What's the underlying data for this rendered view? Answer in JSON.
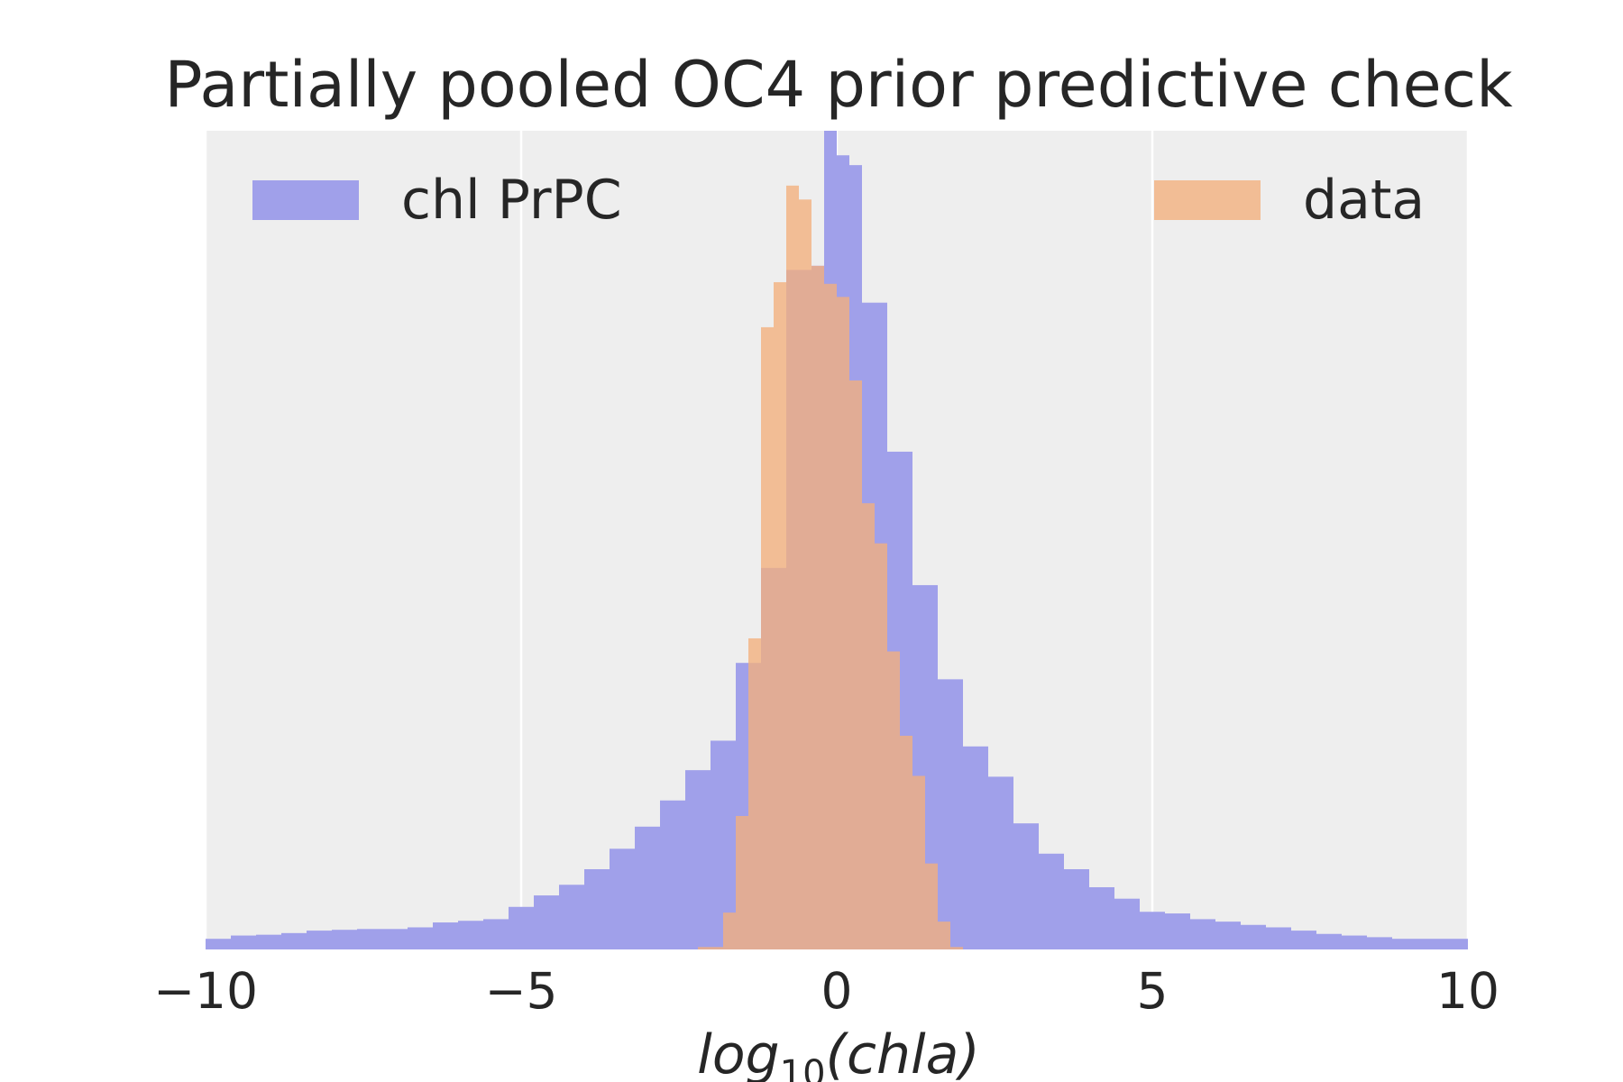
{
  "chart_data": {
    "type": "bar",
    "title": "Partially pooled OC4 prior predictive check",
    "xlabel_parts": {
      "base": "log",
      "subscript": "10",
      "argument": "(chla)"
    },
    "ylabel": "",
    "xlim": [
      -10,
      10
    ],
    "ylim": [
      0,
      1.0
    ],
    "xticks": [
      -10,
      -5,
      0,
      5,
      10
    ],
    "xtick_labels": [
      "−10",
      "−5",
      "0",
      "5",
      "10"
    ],
    "yticks": [],
    "grid": true,
    "legend": [
      {
        "name": "chl PrPC",
        "placement": "upper-left"
      },
      {
        "name": "data",
        "placement": "upper-right"
      }
    ],
    "series": [
      {
        "name": "chl PrPC",
        "color": "#a0a0ea",
        "bin_edges": [
          -10,
          -9.6,
          -9.2,
          -8.8,
          -8.4,
          -8.0,
          -7.6,
          -7.2,
          -6.8,
          -6.4,
          -6.0,
          -5.6,
          -5.2,
          -4.8,
          -4.4,
          -4.0,
          -3.6,
          -3.2,
          -2.8,
          -2.4,
          -2.0,
          -1.6,
          -1.2,
          -0.8,
          -0.4,
          -0.2,
          0.0,
          0.2,
          0.4,
          0.8,
          1.2,
          1.6,
          2.0,
          2.4,
          2.8,
          3.2,
          3.6,
          4.0,
          4.4,
          4.8,
          5.2,
          5.6,
          6.0,
          6.4,
          6.8,
          7.2,
          7.6,
          8.0,
          8.4,
          8.8,
          9.2,
          9.6,
          10.0
        ],
        "values": [
          0.013,
          0.017,
          0.018,
          0.02,
          0.023,
          0.024,
          0.025,
          0.025,
          0.027,
          0.033,
          0.035,
          0.037,
          0.052,
          0.066,
          0.079,
          0.098,
          0.123,
          0.15,
          0.182,
          0.219,
          0.255,
          0.35,
          0.466,
          0.83,
          0.835,
          1.0,
          0.97,
          0.958,
          0.79,
          0.608,
          0.445,
          0.33,
          0.248,
          0.211,
          0.154,
          0.117,
          0.098,
          0.076,
          0.062,
          0.046,
          0.044,
          0.037,
          0.034,
          0.03,
          0.027,
          0.023,
          0.019,
          0.017,
          0.015,
          0.013,
          0.013,
          0.013
        ]
      },
      {
        "name": "data",
        "color": "#f4b07c",
        "bin_edges": [
          -2.2,
          -1.8,
          -1.6,
          -1.4,
          -1.2,
          -1.0,
          -0.8,
          -0.6,
          -0.4,
          -0.2,
          0.0,
          0.2,
          0.4,
          0.6,
          0.8,
          1.0,
          1.2,
          1.4,
          1.6,
          1.8,
          2.0
        ],
        "values": [
          0.003,
          0.045,
          0.163,
          0.38,
          0.76,
          0.815,
          0.933,
          0.916,
          0.835,
          0.813,
          0.797,
          0.695,
          0.545,
          0.496,
          0.364,
          0.261,
          0.212,
          0.105,
          0.034,
          0.003
        ]
      }
    ]
  }
}
